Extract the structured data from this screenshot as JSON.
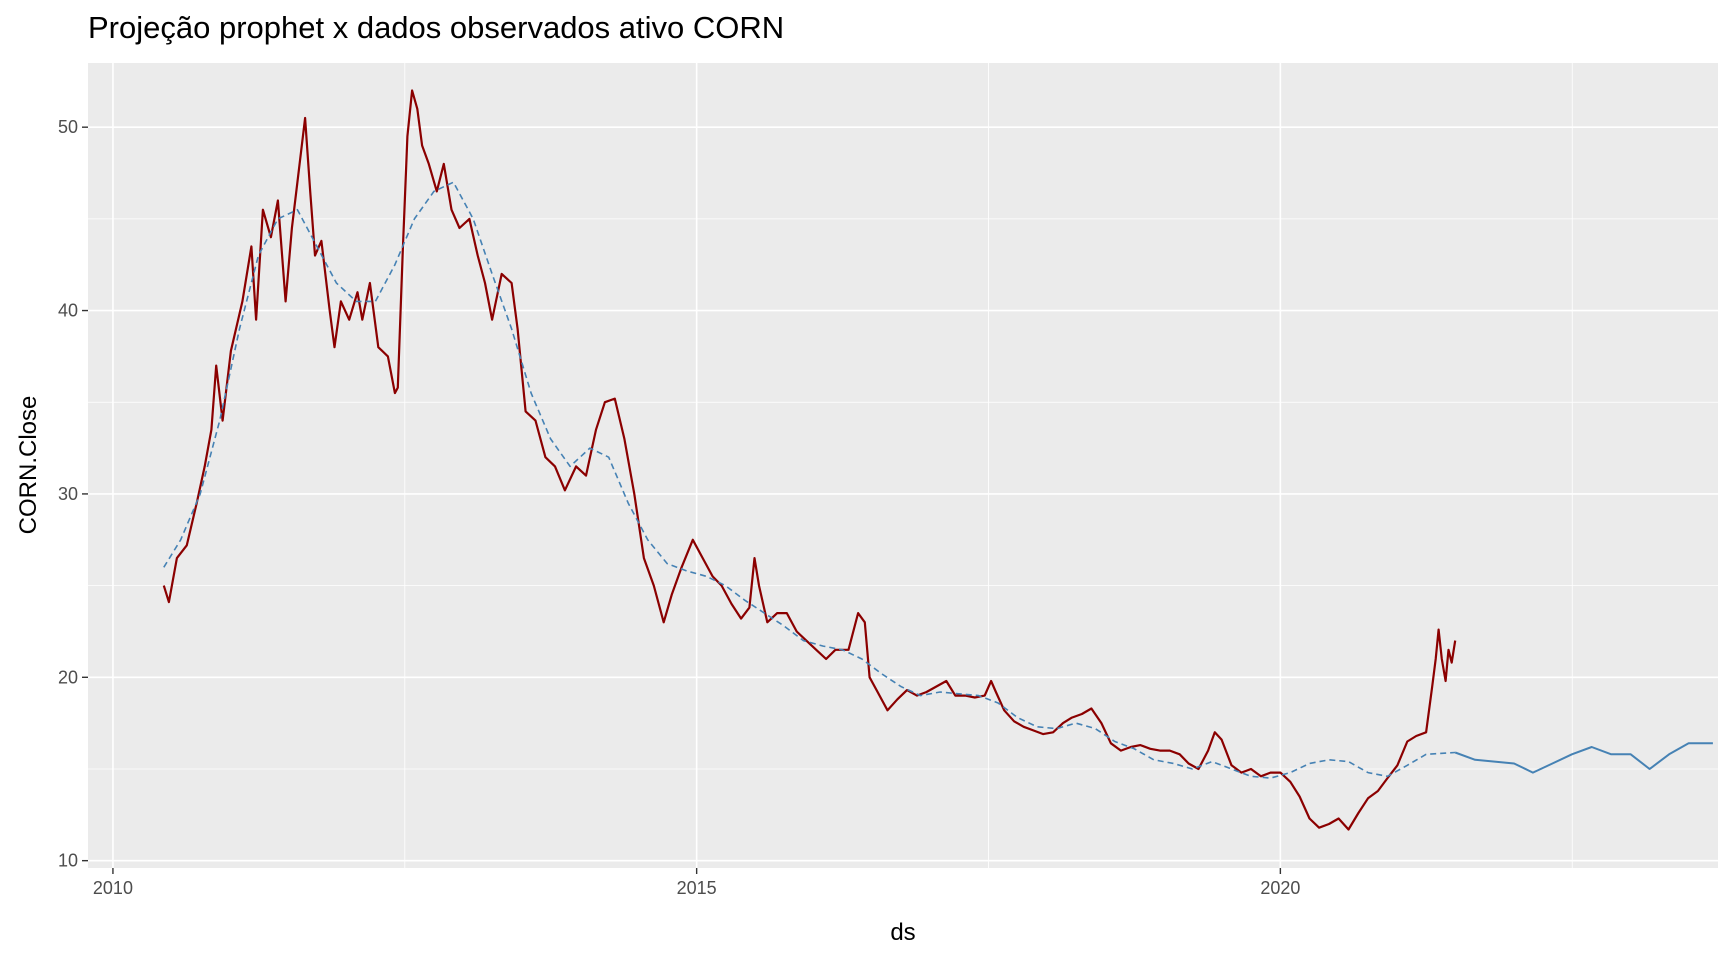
{
  "chart_data": {
    "type": "line",
    "title": "Projeção prophet x dados observados ativo CORN",
    "xlabel": "ds",
    "ylabel": "CORN.Close",
    "x_ticks": [
      "2010",
      "2015",
      "2020"
    ],
    "y_ticks": [
      10,
      20,
      30,
      40,
      50
    ],
    "xlim": [
      "2009-10-15",
      "2023-10-01"
    ],
    "ylim": [
      9.6,
      53.5
    ],
    "grid": true,
    "legend": "none",
    "series": [
      {
        "key": "observed",
        "color": "#8B0000",
        "style": "solid",
        "points": [
          [
            "2010-06-09",
            25.0
          ],
          [
            "2010-06-25",
            24.1
          ],
          [
            "2010-07-20",
            26.5
          ],
          [
            "2010-08-20",
            27.2
          ],
          [
            "2010-09-20",
            29.5
          ],
          [
            "2010-10-15",
            31.5
          ],
          [
            "2010-11-05",
            33.5
          ],
          [
            "2010-11-20",
            37.0
          ],
          [
            "2010-12-10",
            34.0
          ],
          [
            "2011-01-05",
            37.8
          ],
          [
            "2011-02-10",
            40.5
          ],
          [
            "2011-03-10",
            43.5
          ],
          [
            "2011-03-25",
            39.5
          ],
          [
            "2011-04-15",
            45.5
          ],
          [
            "2011-05-10",
            44.0
          ],
          [
            "2011-06-01",
            46.0
          ],
          [
            "2011-06-25",
            40.5
          ],
          [
            "2011-07-15",
            44.5
          ],
          [
            "2011-08-01",
            47.0
          ],
          [
            "2011-08-25",
            50.5
          ],
          [
            "2011-09-10",
            46.5
          ],
          [
            "2011-09-25",
            43.0
          ],
          [
            "2011-10-15",
            43.8
          ],
          [
            "2011-11-10",
            40.0
          ],
          [
            "2011-11-25",
            38.0
          ],
          [
            "2011-12-15",
            40.5
          ],
          [
            "2012-01-10",
            39.5
          ],
          [
            "2012-02-05",
            41.0
          ],
          [
            "2012-02-20",
            39.5
          ],
          [
            "2012-03-15",
            41.5
          ],
          [
            "2012-04-10",
            38.0
          ],
          [
            "2012-05-10",
            37.5
          ],
          [
            "2012-06-01",
            35.5
          ],
          [
            "2012-06-10",
            35.8
          ],
          [
            "2012-06-25",
            43.0
          ],
          [
            "2012-07-10",
            49.5
          ],
          [
            "2012-07-25",
            52.0
          ],
          [
            "2012-08-10",
            51.0
          ],
          [
            "2012-08-25",
            49.0
          ],
          [
            "2012-09-15",
            48.0
          ],
          [
            "2012-10-10",
            46.5
          ],
          [
            "2012-11-01",
            48.0
          ],
          [
            "2012-11-25",
            45.5
          ],
          [
            "2012-12-20",
            44.5
          ],
          [
            "2013-01-20",
            45.0
          ],
          [
            "2013-02-15",
            43.0
          ],
          [
            "2013-03-10",
            41.5
          ],
          [
            "2013-04-01",
            39.5
          ],
          [
            "2013-05-01",
            42.0
          ],
          [
            "2013-06-01",
            41.5
          ],
          [
            "2013-06-20",
            39.0
          ],
          [
            "2013-07-15",
            34.5
          ],
          [
            "2013-08-15",
            34.0
          ],
          [
            "2013-09-15",
            32.0
          ],
          [
            "2013-10-15",
            31.5
          ],
          [
            "2013-11-15",
            30.2
          ],
          [
            "2013-12-20",
            31.5
          ],
          [
            "2014-01-20",
            31.0
          ],
          [
            "2014-02-20",
            33.5
          ],
          [
            "2014-03-20",
            35.0
          ],
          [
            "2014-04-20",
            35.2
          ],
          [
            "2014-05-20",
            33.0
          ],
          [
            "2014-06-20",
            30.0
          ],
          [
            "2014-07-20",
            26.5
          ],
          [
            "2014-08-20",
            25.0
          ],
          [
            "2014-09-20",
            23.0
          ],
          [
            "2014-10-15",
            24.5
          ],
          [
            "2014-11-15",
            26.0
          ],
          [
            "2014-12-20",
            27.5
          ],
          [
            "2015-01-20",
            26.5
          ],
          [
            "2015-02-20",
            25.5
          ],
          [
            "2015-03-20",
            25.0
          ],
          [
            "2015-04-20",
            24.0
          ],
          [
            "2015-05-20",
            23.2
          ],
          [
            "2015-06-15",
            23.8
          ],
          [
            "2015-07-01",
            26.5
          ],
          [
            "2015-07-15",
            25.0
          ],
          [
            "2015-08-10",
            23.0
          ],
          [
            "2015-09-10",
            23.5
          ],
          [
            "2015-10-10",
            23.5
          ],
          [
            "2015-11-10",
            22.5
          ],
          [
            "2015-12-10",
            22.0
          ],
          [
            "2016-01-10",
            21.5
          ],
          [
            "2016-02-10",
            21.0
          ],
          [
            "2016-03-10",
            21.5
          ],
          [
            "2016-04-20",
            21.5
          ],
          [
            "2016-05-20",
            23.5
          ],
          [
            "2016-06-10",
            23.0
          ],
          [
            "2016-06-25",
            20.0
          ],
          [
            "2016-07-20",
            19.2
          ],
          [
            "2016-08-20",
            18.2
          ],
          [
            "2016-09-20",
            18.8
          ],
          [
            "2016-10-20",
            19.3
          ],
          [
            "2016-11-20",
            19.0
          ],
          [
            "2016-12-20",
            19.2
          ],
          [
            "2017-01-20",
            19.5
          ],
          [
            "2017-02-20",
            19.8
          ],
          [
            "2017-03-20",
            19.0
          ],
          [
            "2017-04-20",
            19.0
          ],
          [
            "2017-05-20",
            18.9
          ],
          [
            "2017-06-20",
            19.0
          ],
          [
            "2017-07-10",
            19.8
          ],
          [
            "2017-07-25",
            19.2
          ],
          [
            "2017-08-20",
            18.2
          ],
          [
            "2017-09-20",
            17.6
          ],
          [
            "2017-10-20",
            17.3
          ],
          [
            "2017-11-20",
            17.1
          ],
          [
            "2017-12-20",
            16.9
          ],
          [
            "2018-01-20",
            17.0
          ],
          [
            "2018-02-20",
            17.5
          ],
          [
            "2018-03-20",
            17.8
          ],
          [
            "2018-04-20",
            18.0
          ],
          [
            "2018-05-20",
            18.3
          ],
          [
            "2018-06-20",
            17.5
          ],
          [
            "2018-07-20",
            16.4
          ],
          [
            "2018-08-20",
            16.0
          ],
          [
            "2018-09-20",
            16.2
          ],
          [
            "2018-10-20",
            16.3
          ],
          [
            "2018-11-20",
            16.1
          ],
          [
            "2018-12-20",
            16.0
          ],
          [
            "2019-01-20",
            16.0
          ],
          [
            "2019-02-20",
            15.8
          ],
          [
            "2019-03-20",
            15.3
          ],
          [
            "2019-04-20",
            15.0
          ],
          [
            "2019-05-20",
            16.0
          ],
          [
            "2019-06-10",
            17.0
          ],
          [
            "2019-07-01",
            16.6
          ],
          [
            "2019-08-01",
            15.2
          ],
          [
            "2019-09-01",
            14.8
          ],
          [
            "2019-10-01",
            15.0
          ],
          [
            "2019-11-01",
            14.6
          ],
          [
            "2019-12-01",
            14.8
          ],
          [
            "2020-01-01",
            14.8
          ],
          [
            "2020-02-01",
            14.3
          ],
          [
            "2020-03-01",
            13.5
          ],
          [
            "2020-04-01",
            12.3
          ],
          [
            "2020-05-01",
            11.8
          ],
          [
            "2020-06-01",
            12.0
          ],
          [
            "2020-07-01",
            12.3
          ],
          [
            "2020-08-01",
            11.7
          ],
          [
            "2020-09-01",
            12.6
          ],
          [
            "2020-10-01",
            13.4
          ],
          [
            "2020-11-01",
            13.8
          ],
          [
            "2020-12-01",
            14.5
          ],
          [
            "2021-01-01",
            15.2
          ],
          [
            "2021-02-01",
            16.5
          ],
          [
            "2021-03-01",
            16.8
          ],
          [
            "2021-04-01",
            17.0
          ],
          [
            "2021-04-20",
            19.5
          ],
          [
            "2021-05-01",
            21.0
          ],
          [
            "2021-05-10",
            22.6
          ],
          [
            "2021-05-20",
            21.0
          ],
          [
            "2021-06-01",
            19.8
          ],
          [
            "2021-06-10",
            21.5
          ],
          [
            "2021-06-20",
            20.8
          ],
          [
            "2021-07-01",
            22.0
          ]
        ]
      },
      {
        "key": "projection",
        "color": "#4682B4",
        "style": "dashed-then-solid",
        "solid_from": "2021-07-01",
        "points": [
          [
            "2010-06-09",
            26.0
          ],
          [
            "2010-08-01",
            27.5
          ],
          [
            "2010-10-01",
            30.0
          ],
          [
            "2010-12-01",
            34.0
          ],
          [
            "2011-02-01",
            39.0
          ],
          [
            "2011-04-01",
            43.0
          ],
          [
            "2011-06-01",
            45.0
          ],
          [
            "2011-08-01",
            45.5
          ],
          [
            "2011-10-01",
            43.5
          ],
          [
            "2011-12-01",
            41.5
          ],
          [
            "2012-02-01",
            40.5
          ],
          [
            "2012-04-01",
            40.5
          ],
          [
            "2012-06-01",
            42.5
          ],
          [
            "2012-08-01",
            45.0
          ],
          [
            "2012-10-01",
            46.5
          ],
          [
            "2012-12-01",
            47.0
          ],
          [
            "2013-02-01",
            45.0
          ],
          [
            "2013-04-01",
            42.0
          ],
          [
            "2013-06-01",
            39.0
          ],
          [
            "2013-08-01",
            35.5
          ],
          [
            "2013-10-01",
            33.0
          ],
          [
            "2013-12-01",
            31.5
          ],
          [
            "2014-02-01",
            32.5
          ],
          [
            "2014-04-01",
            32.0
          ],
          [
            "2014-06-01",
            29.5
          ],
          [
            "2014-08-01",
            27.5
          ],
          [
            "2014-10-01",
            26.2
          ],
          [
            "2014-12-01",
            25.8
          ],
          [
            "2015-02-01",
            25.5
          ],
          [
            "2015-04-01",
            25.0
          ],
          [
            "2015-06-01",
            24.2
          ],
          [
            "2015-08-01",
            23.5
          ],
          [
            "2015-10-01",
            22.8
          ],
          [
            "2015-12-01",
            22.0
          ],
          [
            "2016-02-01",
            21.7
          ],
          [
            "2016-04-01",
            21.5
          ],
          [
            "2016-06-01",
            21.0
          ],
          [
            "2016-08-01",
            20.2
          ],
          [
            "2016-10-01",
            19.5
          ],
          [
            "2016-12-01",
            19.0
          ],
          [
            "2017-02-01",
            19.2
          ],
          [
            "2017-04-01",
            19.1
          ],
          [
            "2017-06-01",
            19.0
          ],
          [
            "2017-08-01",
            18.6
          ],
          [
            "2017-10-01",
            17.8
          ],
          [
            "2017-12-01",
            17.3
          ],
          [
            "2018-02-01",
            17.2
          ],
          [
            "2018-04-01",
            17.5
          ],
          [
            "2018-06-01",
            17.2
          ],
          [
            "2018-08-01",
            16.5
          ],
          [
            "2018-10-01",
            16.1
          ],
          [
            "2018-12-01",
            15.5
          ],
          [
            "2019-02-01",
            15.3
          ],
          [
            "2019-04-01",
            15.0
          ],
          [
            "2019-06-01",
            15.4
          ],
          [
            "2019-08-01",
            15.0
          ],
          [
            "2019-10-01",
            14.6
          ],
          [
            "2019-12-01",
            14.5
          ],
          [
            "2020-02-01",
            14.8
          ],
          [
            "2020-04-01",
            15.3
          ],
          [
            "2020-06-01",
            15.5
          ],
          [
            "2020-08-01",
            15.4
          ],
          [
            "2020-10-01",
            14.8
          ],
          [
            "2020-12-01",
            14.6
          ],
          [
            "2021-02-01",
            15.2
          ],
          [
            "2021-04-01",
            15.8
          ],
          [
            "2021-07-01",
            15.9
          ],
          [
            "2021-09-01",
            15.5
          ],
          [
            "2021-11-01",
            15.4
          ],
          [
            "2022-01-01",
            15.3
          ],
          [
            "2022-03-01",
            14.8
          ],
          [
            "2022-05-01",
            15.3
          ],
          [
            "2022-07-01",
            15.8
          ],
          [
            "2022-09-01",
            16.2
          ],
          [
            "2022-11-01",
            15.8
          ],
          [
            "2023-01-01",
            15.8
          ],
          [
            "2023-03-01",
            15.0
          ],
          [
            "2023-05-01",
            15.8
          ],
          [
            "2023-07-01",
            16.4
          ],
          [
            "2023-09-15",
            16.4
          ]
        ]
      }
    ]
  }
}
